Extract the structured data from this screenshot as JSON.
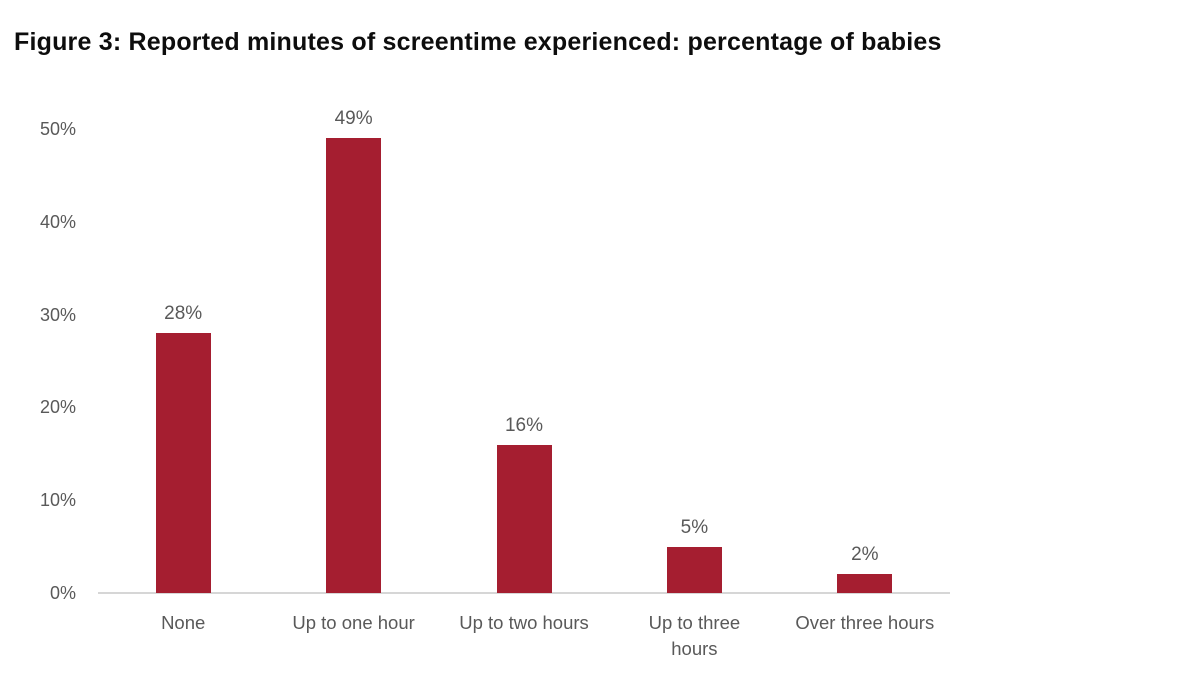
{
  "title": "Figure 3: Reported minutes of screentime experienced: percentage of babies",
  "chart_data": {
    "type": "bar",
    "title": "Figure 3: Reported minutes of screentime experienced: percentage of babies",
    "categories": [
      "None",
      "Up to one hour",
      "Up to two hours",
      "Up to three\nhours",
      "Over three hours"
    ],
    "values": [
      28,
      49,
      16,
      5,
      2
    ],
    "data_labels": [
      "28%",
      "49%",
      "16%",
      "5%",
      "2%"
    ],
    "xlabel": "",
    "ylabel": "",
    "ylim": [
      0,
      50
    ],
    "yticks": [
      {
        "value": 0,
        "label": "0%"
      },
      {
        "value": 10,
        "label": "10%"
      },
      {
        "value": 20,
        "label": "20%"
      },
      {
        "value": 30,
        "label": "30%"
      },
      {
        "value": 40,
        "label": "40%"
      },
      {
        "value": 50,
        "label": "50%"
      }
    ],
    "grid": false,
    "legend": false,
    "bar_color": "#A51E30",
    "value_label_color": "#595959",
    "tick_label_color": "#595959",
    "axis_line_color": "#D6D6D6"
  }
}
